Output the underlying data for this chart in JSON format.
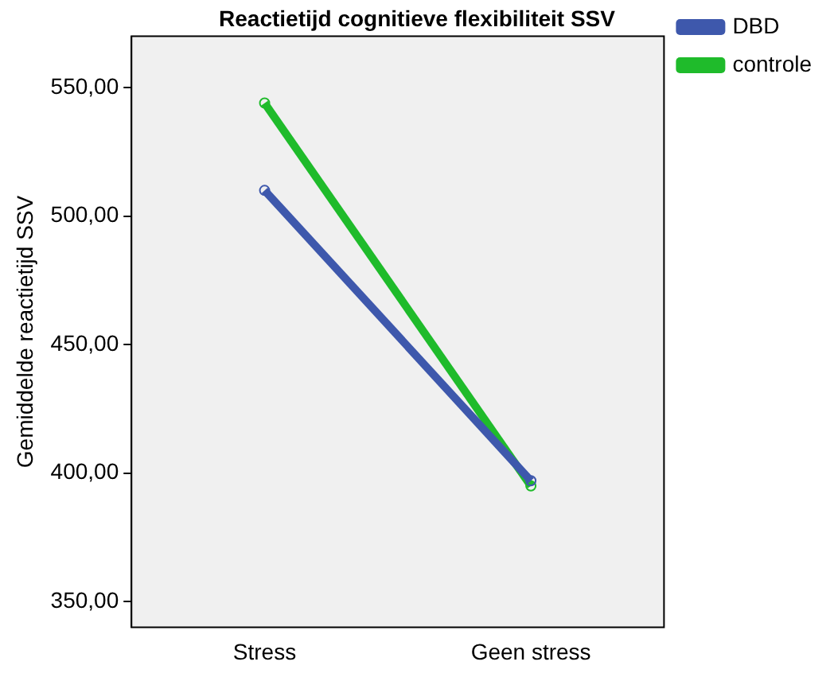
{
  "chart_data": {
    "type": "line",
    "title": "Reactietijd cognitieve flexibiliteit SSV",
    "ylabel": "Gemiddelde reactietijd SSV",
    "categories": [
      "Stress",
      "Geen stress"
    ],
    "series": [
      {
        "name": "DBD",
        "color": "#3e58ac",
        "values": [
          510,
          397
        ]
      },
      {
        "name": "controle",
        "color": "#1fbb2b",
        "values": [
          544,
          395
        ]
      }
    ],
    "ylim": [
      340,
      570
    ],
    "yticks": [
      {
        "value": 350,
        "label": "350,00"
      },
      {
        "value": 400,
        "label": "400,00"
      },
      {
        "value": 450,
        "label": "450,00"
      },
      {
        "value": 500,
        "label": "500,00"
      },
      {
        "value": 550,
        "label": "550,00"
      }
    ],
    "grid": false,
    "legend": "top right",
    "marker": "circle",
    "line_style": "solid"
  }
}
